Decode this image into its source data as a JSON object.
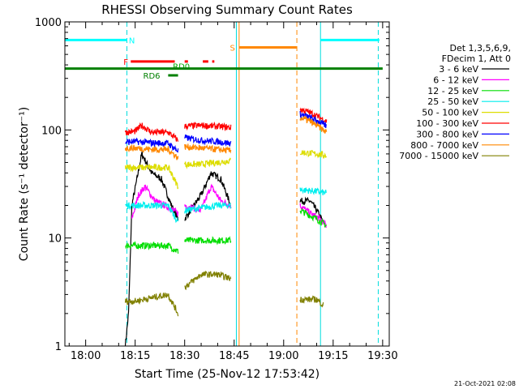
{
  "chart_data": {
    "type": "line",
    "title": "RHESSI Observing Summary Count Rates",
    "xlabel": "Start Time (25-Nov-12 17:53:42)",
    "ylabel": "Count Rate (s⁻¹ detector⁻¹)",
    "yscale": "log",
    "ylim": [
      1,
      1000
    ],
    "xlim": [
      "17:53:42",
      "19:32:00"
    ],
    "x_ticks": [
      "18:00",
      "18:15",
      "18:30",
      "18:45",
      "19:00",
      "19:15",
      "19:30"
    ],
    "y_ticks": [
      "1",
      "10",
      "100",
      "1000"
    ],
    "legend_header": [
      "Det 1,3,5,6,9,",
      "FDecim 1, Att 0"
    ],
    "legend_placement": "right, outside plot",
    "footer_date": "21-Oct-2021 02:08",
    "series": [
      {
        "name": "3 - 6 keV",
        "color": "#000000",
        "segments": [
          [
            [
              "18:12",
              1.0
            ],
            [
              "18:13",
              2.0
            ],
            [
              "18:14",
              20
            ],
            [
              "18:17",
              60
            ],
            [
              "18:20",
              40
            ],
            [
              "18:23",
              35
            ],
            [
              "18:26",
              20
            ],
            [
              "18:28",
              15
            ]
          ],
          [
            [
              "18:30",
              15
            ],
            [
              "18:35",
              25
            ],
            [
              "18:38",
              40
            ],
            [
              "18:41",
              35
            ],
            [
              "18:44",
              20
            ]
          ],
          [
            [
              "19:05",
              22
            ],
            [
              "19:08",
              22
            ],
            [
              "19:10",
              18
            ],
            [
              "19:12",
              14
            ]
          ]
        ]
      },
      {
        "name": "6 - 12 keV",
        "color": "#ff00ff",
        "segments": [
          [
            [
              "18:14",
              15
            ],
            [
              "18:16",
              25
            ],
            [
              "18:18",
              30
            ],
            [
              "18:21",
              22
            ],
            [
              "18:24",
              20
            ],
            [
              "18:28",
              17
            ]
          ],
          [
            [
              "18:30",
              20
            ],
            [
              "18:35",
              18
            ],
            [
              "18:38",
              30
            ],
            [
              "18:41",
              22
            ],
            [
              "18:44",
              20
            ]
          ],
          [
            [
              "19:05",
              20
            ],
            [
              "19:08",
              17
            ],
            [
              "19:11",
              15
            ],
            [
              "19:13",
              13
            ]
          ]
        ]
      },
      {
        "name": "12 - 25 keV",
        "color": "#00dd00",
        "segments": [
          [
            [
              "18:12",
              8.5
            ],
            [
              "18:15",
              8.5
            ],
            [
              "18:20",
              8.5
            ],
            [
              "18:25",
              8.5
            ],
            [
              "18:28",
              7.5
            ]
          ],
          [
            [
              "18:30",
              9.5
            ],
            [
              "18:35",
              9.5
            ],
            [
              "18:40",
              9.5
            ],
            [
              "18:44",
              9.5
            ]
          ],
          [
            [
              "19:05",
              18
            ],
            [
              "19:10",
              15
            ],
            [
              "19:13",
              13
            ]
          ]
        ]
      },
      {
        "name": "25 - 50 keV",
        "color": "#00eeee",
        "segments": [
          [
            [
              "18:12",
              20
            ],
            [
              "18:15",
              20
            ],
            [
              "18:20",
              20
            ],
            [
              "18:25",
              20
            ],
            [
              "18:28",
              14
            ]
          ],
          [
            [
              "18:30",
              18
            ],
            [
              "18:35",
              19
            ],
            [
              "18:40",
              20
            ],
            [
              "18:44",
              20
            ]
          ],
          [
            [
              "19:05",
              28
            ],
            [
              "19:10",
              27
            ],
            [
              "19:13",
              26
            ]
          ]
        ]
      },
      {
        "name": "50 - 100 keV",
        "color": "#dddd00",
        "segments": [
          [
            [
              "18:12",
              45
            ],
            [
              "18:15",
              45
            ],
            [
              "18:20",
              45
            ],
            [
              "18:25",
              45
            ],
            [
              "18:28",
              30
            ]
          ],
          [
            [
              "18:30",
              48
            ],
            [
              "18:35",
              48
            ],
            [
              "18:40",
              50
            ],
            [
              "18:44",
              52
            ]
          ],
          [
            [
              "19:05",
              62
            ],
            [
              "19:10",
              60
            ],
            [
              "19:13",
              58
            ]
          ]
        ]
      },
      {
        "name": "100 - 300 keV",
        "color": "#ff0000",
        "segments": [
          [
            [
              "18:12",
              95
            ],
            [
              "18:15",
              97
            ],
            [
              "18:17",
              110
            ],
            [
              "18:20",
              95
            ],
            [
              "18:25",
              95
            ],
            [
              "18:28",
              80
            ]
          ],
          [
            [
              "18:30",
              108
            ],
            [
              "18:35",
              110
            ],
            [
              "18:40",
              108
            ],
            [
              "18:44",
              105
            ]
          ],
          [
            [
              "19:05",
              155
            ],
            [
              "19:08",
              145
            ],
            [
              "19:11",
              130
            ],
            [
              "19:13",
              120
            ]
          ]
        ]
      },
      {
        "name": "300 - 800 keV",
        "color": "#0000ff",
        "segments": [
          [
            [
              "18:12",
              77
            ],
            [
              "18:15",
              78
            ],
            [
              "18:20",
              76
            ],
            [
              "18:25",
              75
            ],
            [
              "18:28",
              64
            ]
          ],
          [
            [
              "18:30",
              85
            ],
            [
              "18:35",
              80
            ],
            [
              "18:40",
              78
            ],
            [
              "18:44",
              75
            ]
          ],
          [
            [
              "19:05",
              140
            ],
            [
              "19:08",
              130
            ],
            [
              "19:11",
              118
            ],
            [
              "19:13",
              108
            ]
          ]
        ]
      },
      {
        "name": "800 - 7000 keV",
        "color": "#ff8800",
        "segments": [
          [
            [
              "18:12",
              68
            ],
            [
              "18:15",
              68
            ],
            [
              "18:20",
              66
            ],
            [
              "18:25",
              66
            ],
            [
              "18:28",
              55
            ]
          ],
          [
            [
              "18:30",
              70
            ],
            [
              "18:35",
              68
            ],
            [
              "18:40",
              66
            ],
            [
              "18:44",
              64
            ]
          ],
          [
            [
              "19:05",
              130
            ],
            [
              "19:08",
              120
            ],
            [
              "19:11",
              105
            ],
            [
              "19:13",
              95
            ]
          ]
        ]
      },
      {
        "name": "7000 - 15000 keV",
        "color": "#808000",
        "segments": [
          [
            [
              "18:12",
              2.6
            ],
            [
              "18:15",
              2.6
            ],
            [
              "18:20",
              2.8
            ],
            [
              "18:25",
              3.0
            ],
            [
              "18:28",
              2.0
            ]
          ],
          [
            [
              "18:30",
              3.5
            ],
            [
              "18:35",
              4.6
            ],
            [
              "18:40",
              4.6
            ],
            [
              "18:44",
              4.2
            ]
          ],
          [
            [
              "19:05",
              2.7
            ],
            [
              "19:10",
              2.7
            ],
            [
              "19:12",
              2.4
            ]
          ]
        ]
      }
    ],
    "vertical_lines": [
      {
        "time": "18:12:30",
        "color": "#00dddd",
        "style": "dashed"
      },
      {
        "time": "18:45:40",
        "color": "#00dddd",
        "style": "solid"
      },
      {
        "time": "18:46:30",
        "color": "#ff8800",
        "style": "solid"
      },
      {
        "time": "19:04:00",
        "color": "#ff8800",
        "style": "dashed"
      },
      {
        "time": "19:11:10",
        "color": "#00dddd",
        "style": "solid"
      },
      {
        "time": "19:28:40",
        "color": "#00dddd",
        "style": "dashed"
      }
    ],
    "flag_bars": [
      {
        "label": "N",
        "color": "#00ffff",
        "y": 680,
        "thickness": 3,
        "intervals": [
          [
            "17:53:42",
            "18:12:30"
          ],
          [
            "19:11:10",
            "19:29:00"
          ]
        ],
        "label_at": "18:14:00"
      },
      {
        "label": "S",
        "color": "#ff8800",
        "y": 580,
        "thickness": 3,
        "intervals": [
          [
            "18:46:30",
            "19:04:00"
          ]
        ],
        "label_at": "18:44:30"
      },
      {
        "label": "F",
        "color": "#ff0000",
        "y": 430,
        "thickness": 3,
        "intervals": [
          [
            "18:13:40",
            "18:27:00"
          ],
          [
            "18:30:00",
            "18:31:00"
          ],
          [
            "18:35:30",
            "18:37:10"
          ],
          [
            "18:38:20",
            "18:39:00"
          ]
        ],
        "label_at": "18:12:10"
      },
      {
        "label": "RD0",
        "color": "#00aa00",
        "y": 390,
        "thickness": 3,
        "intervals": [],
        "label_at": "18:29:00"
      },
      {
        "label": "",
        "color": "#008000",
        "y": 370,
        "thickness": 3,
        "intervals": [
          [
            "17:53:42",
            "19:30:00"
          ]
        ],
        "label_at": ""
      },
      {
        "label": "RD6",
        "color": "#008000",
        "y": 320,
        "thickness": 3,
        "intervals": [
          [
            "18:25:00",
            "18:28:00"
          ]
        ],
        "label_at": "18:20:00"
      }
    ]
  }
}
